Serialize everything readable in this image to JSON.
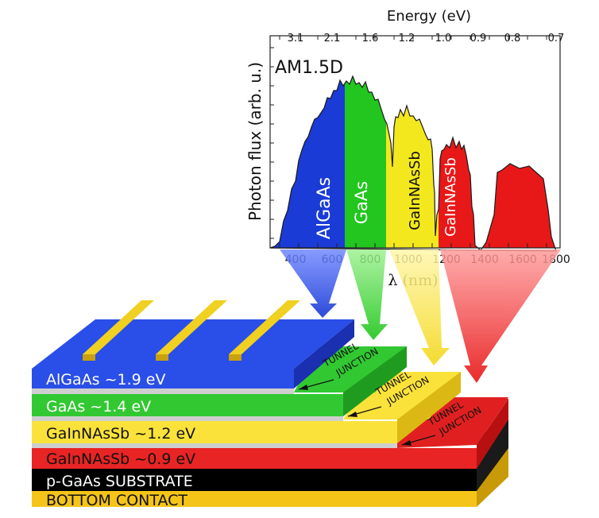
{
  "spectrum": {
    "top_axis_title": "Energy (eV)",
    "top_ticks": [
      "3.1",
      "2.1",
      "1.6",
      "1.2",
      "1.0",
      "0.9",
      "0.8",
      "0.7"
    ],
    "panel_label": "AM1.5D",
    "y_axis_title": "Photon flux (arb. u.)",
    "bottom_ticks": [
      "400",
      "600",
      "800",
      "1000",
      "1200",
      "1400",
      "1600",
      "1800"
    ],
    "bottom_axis_title": "λ (nm)",
    "band_labels": [
      "AlGaAs",
      "GaAs",
      "GaInNAsSb",
      "GaInNAsSb"
    ],
    "band_colors": [
      "#1a3bd6",
      "#22c61e",
      "#f3e81e",
      "#e81818"
    ]
  },
  "stack": {
    "layers": [
      "AlGaAs ~1.9 eV",
      "GaAs ~1.4 eV",
      "GaInNAsSb ~1.2 eV",
      "GaInNAsSb ~0.9 eV",
      "p-GaAs SUBSTRATE",
      "BOTTOM CONTACT"
    ],
    "tunnel_line1": "TUNNEL",
    "tunnel_line2": "JUNCTION",
    "colors": {
      "algaas": "#2a4ee8",
      "gaas": "#32c832",
      "gainnas12": "#fbe23a",
      "gainnas09": "#e82424",
      "substrate": "#000000",
      "contact": "#f4c418",
      "tunnel": "#c8c8c8",
      "finger": "#f0d020"
    }
  }
}
